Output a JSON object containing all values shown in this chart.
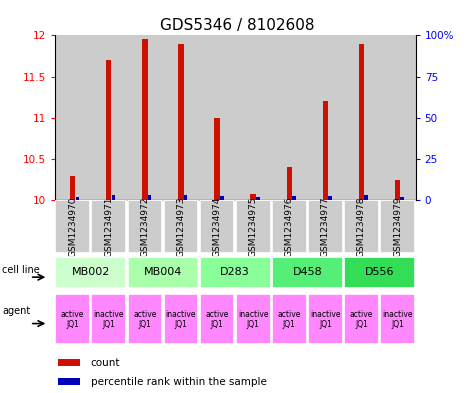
{
  "title": "GDS5346 / 8102608",
  "samples": [
    "GSM1234970",
    "GSM1234971",
    "GSM1234972",
    "GSM1234973",
    "GSM1234974",
    "GSM1234975",
    "GSM1234976",
    "GSM1234977",
    "GSM1234978",
    "GSM1234979"
  ],
  "red_values": [
    10.3,
    11.7,
    11.95,
    11.9,
    11.0,
    10.08,
    10.4,
    11.2,
    11.9,
    10.25
  ],
  "blue_values": [
    2.0,
    3.0,
    3.0,
    3.5,
    2.5,
    2.0,
    2.5,
    2.5,
    3.0,
    2.0
  ],
  "ymin": 10.0,
  "ymax": 12.0,
  "yticks_left": [
    10,
    10.5,
    11,
    11.5,
    12
  ],
  "ytick_labels_left": [
    "10",
    "10.5",
    "11",
    "11.5",
    "12"
  ],
  "yticks_right": [
    0,
    25,
    50,
    75,
    100
  ],
  "ytick_labels_right": [
    "0",
    "25",
    "50",
    "75",
    "100%"
  ],
  "cell_lines": [
    {
      "label": "MB002",
      "cols": [
        0,
        1
      ],
      "color": "#ccffcc"
    },
    {
      "label": "MB004",
      "cols": [
        2,
        3
      ],
      "color": "#aaffaa"
    },
    {
      "label": "D283",
      "cols": [
        4,
        5
      ],
      "color": "#88ff99"
    },
    {
      "label": "D458",
      "cols": [
        6,
        7
      ],
      "color": "#55ee77"
    },
    {
      "label": "D556",
      "cols": [
        8,
        9
      ],
      "color": "#33dd55"
    }
  ],
  "agents": [
    "active\nJQ1",
    "inactive\nJQ1",
    "active\nJQ1",
    "inactive\nJQ1",
    "active\nJQ1",
    "inactive\nJQ1",
    "active\nJQ1",
    "inactive\nJQ1",
    "active\nJQ1",
    "inactive\nJQ1"
  ],
  "agent_color": "#ff88ff",
  "bar_color_red": "#cc1100",
  "bar_color_blue": "#0000bb",
  "bar_bg_color": "#cccccc",
  "grid_color": "#888888",
  "title_fontsize": 11,
  "tick_fontsize": 7.5,
  "sample_fontsize": 6.5
}
